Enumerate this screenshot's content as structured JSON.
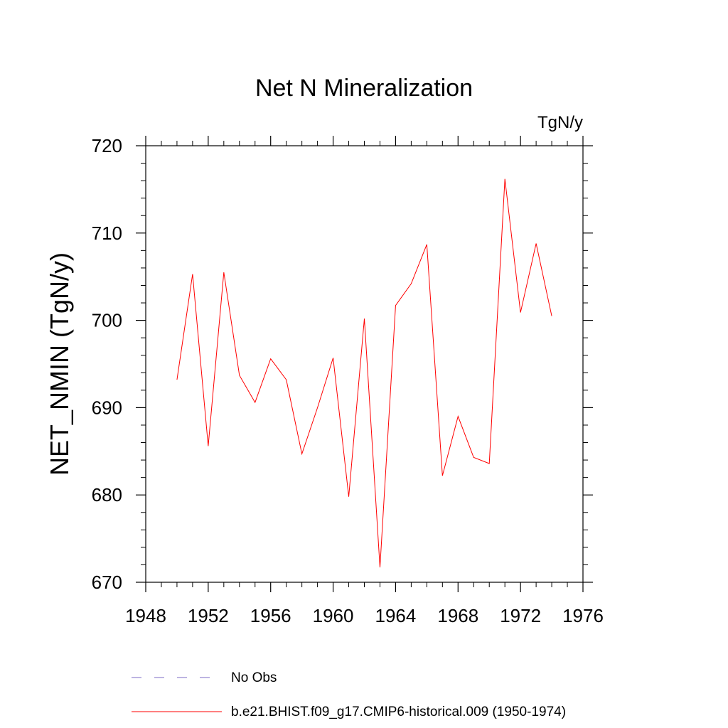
{
  "chart_data": {
    "type": "line",
    "title": "Net N Mineralization",
    "units_label": "TgN/y",
    "ylabel": "NET_NMIN  (TgN/y)",
    "xlabel": "",
    "xlim": [
      1948,
      1976
    ],
    "ylim": [
      670,
      720
    ],
    "x_ticks": [
      1948,
      1952,
      1956,
      1960,
      1964,
      1968,
      1972,
      1976
    ],
    "y_ticks": [
      670,
      680,
      690,
      700,
      710,
      720
    ],
    "grid": false,
    "legend_position": "bottom",
    "series": [
      {
        "name": "b.e21.BHIST.f09_g17.CMIP6-historical.009 (1950-1974)",
        "color": "#ff0000",
        "style": "solid",
        "x": [
          1950,
          1951,
          1952,
          1953,
          1954,
          1955,
          1956,
          1957,
          1958,
          1959,
          1960,
          1961,
          1962,
          1963,
          1964,
          1965,
          1966,
          1967,
          1968,
          1969,
          1970,
          1971,
          1972,
          1973,
          1974
        ],
        "y": [
          693.2,
          705.3,
          685.6,
          705.5,
          693.7,
          690.6,
          695.6,
          693.2,
          684.7,
          690.0,
          695.7,
          679.8,
          700.2,
          671.7,
          701.7,
          704.2,
          708.7,
          682.2,
          689.0,
          684.3,
          683.6,
          716.2,
          700.9,
          708.8,
          700.5
        ]
      },
      {
        "name": "No Obs",
        "color": "#7b68c6",
        "style": "dashed",
        "x": [],
        "y": []
      }
    ]
  }
}
